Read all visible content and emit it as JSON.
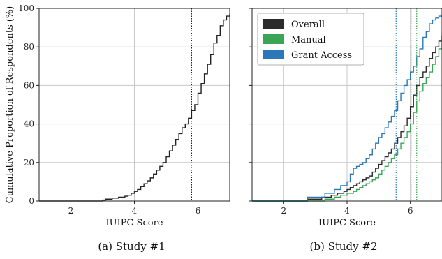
{
  "chart_data": [
    {
      "type": "line",
      "step": true,
      "caption": "(a) Study #1",
      "xlabel": "IUIPC Score",
      "ylabel": "Cumulative Proportion of Respondents (%)",
      "xlim": [
        1.0,
        7.0
      ],
      "ylim": [
        0,
        100
      ],
      "xticks": [
        2,
        4,
        6
      ],
      "yticks": [
        0,
        20,
        40,
        60,
        80,
        100
      ],
      "grid": true,
      "legend": null,
      "series": [
        {
          "color": "#222222",
          "x": [
            1.0,
            3.0,
            3.1,
            3.3,
            3.5,
            3.7,
            3.8,
            3.9,
            4.0,
            4.1,
            4.2,
            4.3,
            4.4,
            4.5,
            4.6,
            4.7,
            4.8,
            4.9,
            5.0,
            5.1,
            5.2,
            5.3,
            5.4,
            5.5,
            5.6,
            5.7,
            5.8,
            5.9,
            6.0,
            6.1,
            6.2,
            6.3,
            6.4,
            6.5,
            6.6,
            6.7,
            6.8,
            6.9,
            7.0
          ],
          "y": [
            0,
            0.5,
            1,
            1.5,
            2,
            2.5,
            3,
            4,
            5,
            6,
            7.5,
            9,
            10.5,
            12,
            14,
            16,
            18,
            20,
            23,
            26,
            29,
            32,
            35,
            38,
            40,
            43,
            47,
            50,
            56,
            61,
            66,
            71,
            76,
            82,
            86,
            91,
            94,
            96,
            97
          ]
        }
      ],
      "vlines": [
        {
          "x": 5.8,
          "color": "#222222",
          "style": "dotted"
        }
      ]
    },
    {
      "type": "line",
      "step": true,
      "caption": "(b) Study #2",
      "xlabel": "IUIPC Score",
      "ylabel": "",
      "xlim": [
        1.0,
        7.0
      ],
      "ylim": [
        0,
        100
      ],
      "xticks": [
        2,
        4,
        6
      ],
      "yticks": [
        0,
        20,
        40,
        60,
        80,
        100
      ],
      "show_ytick_labels": false,
      "grid": true,
      "legend": {
        "placement": "top-left",
        "entries": [
          "Overall",
          "Manual",
          "Grant Access"
        ]
      },
      "series": [
        {
          "name": "Overall",
          "color": "#2b2b2b",
          "x": [
            1.0,
            2.75,
            3.2,
            3.5,
            3.7,
            3.9,
            4.0,
            4.1,
            4.2,
            4.3,
            4.4,
            4.5,
            4.6,
            4.7,
            4.8,
            4.9,
            5.0,
            5.1,
            5.2,
            5.3,
            5.4,
            5.5,
            5.6,
            5.7,
            5.8,
            5.9,
            6.0,
            6.1,
            6.2,
            6.3,
            6.4,
            6.5,
            6.6,
            6.7,
            6.8,
            6.9,
            7.0
          ],
          "y": [
            0,
            1,
            2,
            3,
            4,
            5,
            6,
            7,
            8,
            9,
            10,
            11,
            12,
            13,
            15,
            17,
            19,
            21,
            23,
            25,
            27,
            30,
            33,
            36,
            39,
            43,
            49,
            55,
            60,
            64,
            67,
            70,
            74,
            77,
            80,
            83,
            86
          ]
        },
        {
          "name": "Manual",
          "color": "#3aa655",
          "x": [
            1.0,
            3.3,
            3.6,
            3.8,
            4.0,
            4.2,
            4.3,
            4.4,
            4.5,
            4.6,
            4.7,
            4.8,
            4.9,
            5.0,
            5.1,
            5.2,
            5.3,
            5.4,
            5.5,
            5.6,
            5.7,
            5.8,
            5.9,
            6.0,
            6.1,
            6.2,
            6.3,
            6.4,
            6.5,
            6.6,
            6.7,
            6.8,
            6.9,
            7.0
          ],
          "y": [
            0,
            1,
            2,
            3,
            4,
            5,
            6,
            7,
            8,
            9,
            10,
            11,
            12,
            14,
            16,
            18,
            20,
            22,
            24,
            27,
            30,
            33,
            36,
            40,
            46,
            52,
            57,
            61,
            64,
            67,
            71,
            75,
            79,
            83
          ]
        },
        {
          "name": "Grant Access",
          "color": "#2b78b8",
          "x": [
            1.0,
            2.75,
            3.3,
            3.6,
            3.8,
            4.0,
            4.1,
            4.2,
            4.3,
            4.4,
            4.5,
            4.6,
            4.7,
            4.8,
            4.9,
            5.0,
            5.1,
            5.2,
            5.3,
            5.4,
            5.5,
            5.6,
            5.7,
            5.8,
            5.9,
            6.0,
            6.1,
            6.2,
            6.3,
            6.4,
            6.5,
            6.6,
            6.7,
            6.8,
            6.9,
            7.0
          ],
          "y": [
            0,
            2,
            4,
            6,
            8,
            10,
            14,
            17,
            18,
            19,
            20,
            22,
            24,
            27,
            30,
            33,
            35,
            38,
            41,
            44,
            47,
            52,
            56,
            60,
            63,
            67,
            70,
            75,
            79,
            85,
            88,
            92,
            94,
            95,
            96,
            97
          ]
        }
      ],
      "vlines": [
        {
          "x": 5.55,
          "color": "#2b78b8",
          "style": "dotted"
        },
        {
          "x": 6.02,
          "color": "#2b2b2b",
          "style": "dotted"
        },
        {
          "x": 6.2,
          "color": "#3aa655",
          "style": "dotted"
        }
      ]
    }
  ]
}
